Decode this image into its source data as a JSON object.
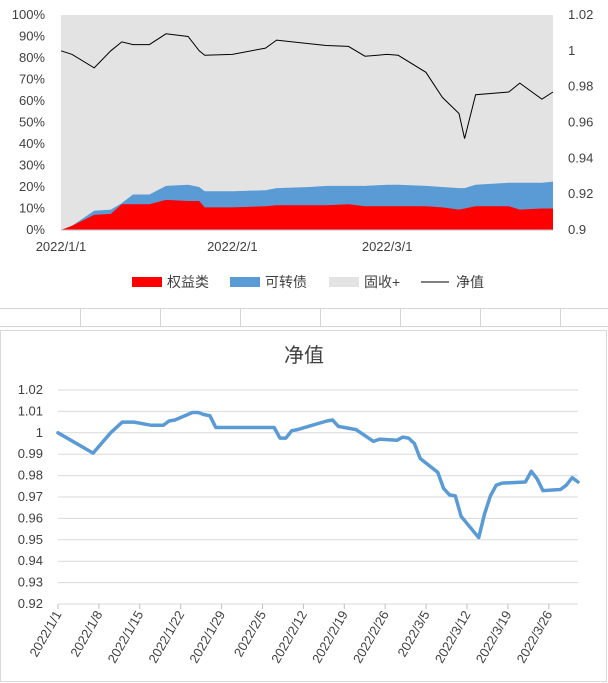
{
  "chart_data": [
    {
      "type": "area",
      "xaxis": {
        "ticks": [
          "2022/1/1",
          "2022/2/1",
          "2022/3/1"
        ]
      },
      "yaxis_left": {
        "ticks": [
          "0%",
          "10%",
          "20%",
          "30%",
          "40%",
          "50%",
          "60%",
          "70%",
          "80%",
          "90%",
          "100%"
        ],
        "ylim": [
          0,
          100
        ]
      },
      "yaxis_right": {
        "ticks": [
          "0.9",
          "0.92",
          "0.94",
          "0.96",
          "0.98",
          "1",
          "1.02"
        ],
        "ylim": [
          0.9,
          1.02
        ]
      },
      "legend": {
        "position": "bottom",
        "entries": [
          "权益类",
          "可转债",
          "固收+",
          "净值"
        ]
      },
      "colors": {
        "equity": "#ff0000",
        "convertible": "#5b9bd5",
        "fixed_income_plus": "#e3e3e3",
        "nav": "#000000"
      },
      "x": [
        "2022/1/1",
        "2022/1/3",
        "2022/1/7",
        "2022/1/10",
        "2022/1/12",
        "2022/1/14",
        "2022/1/17",
        "2022/1/20",
        "2022/1/24",
        "2022/1/26",
        "2022/1/27",
        "2022/2/1",
        "2022/2/7",
        "2022/2/9",
        "2022/2/15",
        "2022/2/18",
        "2022/2/22",
        "2022/2/25",
        "2022/3/1",
        "2022/3/3",
        "2022/3/8",
        "2022/3/11",
        "2022/3/14",
        "2022/3/15",
        "2022/3/17",
        "2022/3/23",
        "2022/3/25",
        "2022/3/29",
        "2022/3/31"
      ],
      "series": [
        {
          "name": "权益类",
          "unit": "%",
          "values": [
            0,
            2,
            7,
            7.5,
            12,
            12,
            12,
            14,
            13.5,
            13.5,
            10.5,
            10.5,
            11,
            11.5,
            11.5,
            11.5,
            12,
            11,
            11,
            11,
            11,
            10.5,
            9.5,
            10,
            11,
            11,
            9.5,
            10,
            10
          ]
        },
        {
          "name": "可转债",
          "unit": "%",
          "values": [
            0,
            2,
            9,
            9.5,
            12.5,
            16.5,
            16.5,
            20.5,
            21,
            20,
            18,
            18,
            18.5,
            19.5,
            20,
            20.5,
            20.5,
            20.5,
            21,
            21,
            20.5,
            20,
            19.5,
            19.5,
            21,
            22,
            22,
            22,
            22.5
          ]
        },
        {
          "name": "固收+",
          "unit": "%",
          "values": [
            100,
            100,
            100,
            100,
            100,
            100,
            100,
            100,
            100,
            100,
            100,
            100,
            100,
            100,
            100,
            100,
            100,
            100,
            100,
            100,
            100,
            100,
            100,
            100,
            100,
            100,
            100,
            100,
            100
          ]
        },
        {
          "name": "净值",
          "axis": "right",
          "values": [
            1.0,
            0.998,
            0.9905,
            1.0,
            1.005,
            1.0035,
            1.0035,
            1.0095,
            1.008,
            1.0,
            0.9975,
            0.998,
            1.0015,
            1.006,
            1.004,
            1.003,
            1.0025,
            0.997,
            0.998,
            0.9975,
            0.988,
            0.974,
            0.965,
            0.951,
            0.9755,
            0.977,
            0.982,
            0.973,
            0.977
          ]
        }
      ]
    },
    {
      "type": "line",
      "title": "净值",
      "x": [
        "2022/1/1",
        "2022/1/7",
        "2022/1/10",
        "2022/1/12",
        "2022/1/14",
        "2022/1/17",
        "2022/1/18",
        "2022/1/19",
        "2022/1/20",
        "2022/1/21",
        "2022/1/24",
        "2022/1/25",
        "2022/1/26",
        "2022/1/27",
        "2022/1/28",
        "2022/2/7",
        "2022/2/8",
        "2022/2/9",
        "2022/2/10",
        "2022/2/11",
        "2022/2/16",
        "2022/2/17",
        "2022/2/18",
        "2022/2/21",
        "2022/2/24",
        "2022/2/25",
        "2022/2/28",
        "2022/3/1",
        "2022/3/2",
        "2022/3/3",
        "2022/3/4",
        "2022/3/7",
        "2022/3/8",
        "2022/3/9",
        "2022/3/10",
        "2022/3/11",
        "2022/3/14",
        "2022/3/15",
        "2022/3/16",
        "2022/3/17",
        "2022/3/18",
        "2022/3/22",
        "2022/3/23",
        "2022/3/24",
        "2022/3/25",
        "2022/3/28",
        "2022/3/29",
        "2022/3/30",
        "2022/3/31"
      ],
      "values": [
        1.0,
        0.9905,
        1.0,
        1.005,
        1.005,
        1.0035,
        1.0035,
        1.0035,
        1.0055,
        1.006,
        1.0095,
        1.0095,
        1.0085,
        1.008,
        1.0025,
        1.0025,
        0.9975,
        0.9975,
        1.001,
        1.0015,
        1.0055,
        1.006,
        1.003,
        1.0015,
        0.996,
        0.997,
        0.9965,
        0.998,
        0.9975,
        0.995,
        0.988,
        0.9815,
        0.974,
        0.971,
        0.9705,
        0.961,
        0.951,
        0.962,
        0.9705,
        0.9755,
        0.9765,
        0.977,
        0.982,
        0.9785,
        0.973,
        0.9735,
        0.9755,
        0.979,
        0.977
      ],
      "xaxis": {
        "ticks": [
          "2022/1/1",
          "2022/1/8",
          "2022/1/15",
          "2022/1/22",
          "2022/1/29",
          "2022/2/5",
          "2022/2/12",
          "2022/2/19",
          "2022/2/26",
          "2022/3/5",
          "2022/3/12",
          "2022/3/19",
          "2022/3/26"
        ]
      },
      "yaxis": {
        "ticks": [
          "0.92",
          "0.93",
          "0.94",
          "0.95",
          "0.96",
          "0.97",
          "0.98",
          "0.99",
          "1",
          "1.01",
          "1.02"
        ],
        "ylim": [
          0.92,
          1.02
        ]
      },
      "grid": true,
      "color": "#5b9bd5"
    }
  ]
}
